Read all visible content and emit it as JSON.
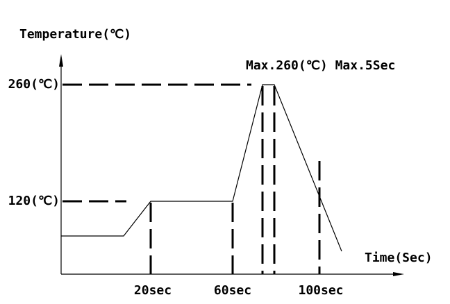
{
  "axis_labels": {
    "y": "Temperature(℃)",
    "x": "Time(Sec)"
  },
  "y_labels": [
    "260(℃)",
    "120(℃)"
  ],
  "x_labels": [
    "20sec",
    "60sec",
    "100sec"
  ],
  "annotation": "Max.260(℃) Max.5Sec"
}
